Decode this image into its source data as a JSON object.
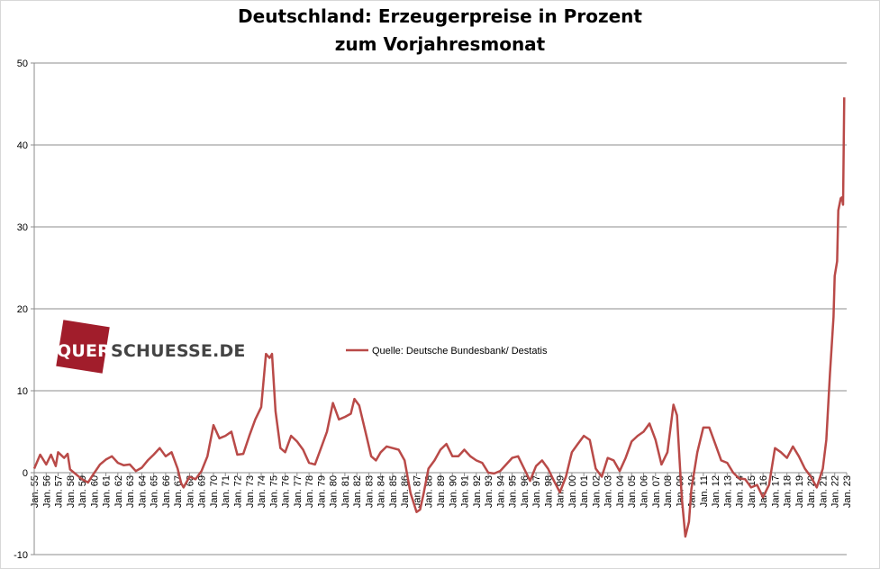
{
  "chart_data": {
    "type": "line",
    "title": "Deutschland: Erzeugerpreise in Prozent",
    "subtitle": "zum Vorjahresmonat",
    "xlabel": "",
    "ylabel": "",
    "ylim": [
      -10,
      50
    ],
    "yticks": [
      -10,
      0,
      10,
      20,
      30,
      40,
      50
    ],
    "grid": true,
    "legend_position": "center",
    "series": [
      {
        "name": "Quelle: Deutsche Bundesbank/ Destatis",
        "color": "#b94a48",
        "points": [
          [
            1955.0,
            0.5
          ],
          [
            1955.5,
            2.2
          ],
          [
            1956.0,
            1.0
          ],
          [
            1956.4,
            2.2
          ],
          [
            1956.8,
            0.8
          ],
          [
            1957.0,
            2.5
          ],
          [
            1957.5,
            1.8
          ],
          [
            1957.8,
            2.3
          ],
          [
            1958.0,
            0.4
          ],
          [
            1958.5,
            -0.2
          ],
          [
            1959.0,
            -0.8
          ],
          [
            1959.5,
            -1.2
          ],
          [
            1959.9,
            -0.3
          ],
          [
            1960.5,
            1.0
          ],
          [
            1961.0,
            1.6
          ],
          [
            1961.5,
            2.0
          ],
          [
            1962.0,
            1.2
          ],
          [
            1962.5,
            0.9
          ],
          [
            1963.0,
            1.0
          ],
          [
            1963.5,
            0.2
          ],
          [
            1964.0,
            0.6
          ],
          [
            1964.5,
            1.5
          ],
          [
            1965.0,
            2.2
          ],
          [
            1965.5,
            3.0
          ],
          [
            1966.0,
            2.0
          ],
          [
            1966.5,
            2.5
          ],
          [
            1967.0,
            0.5
          ],
          [
            1967.3,
            -1.3
          ],
          [
            1967.5,
            -1.8
          ],
          [
            1968.0,
            -0.5
          ],
          [
            1968.5,
            -0.8
          ],
          [
            1969.0,
            0.2
          ],
          [
            1969.5,
            2.0
          ],
          [
            1970.0,
            5.8
          ],
          [
            1970.5,
            4.2
          ],
          [
            1971.0,
            4.5
          ],
          [
            1971.5,
            5.0
          ],
          [
            1972.0,
            2.2
          ],
          [
            1972.5,
            2.3
          ],
          [
            1973.0,
            4.5
          ],
          [
            1973.5,
            6.5
          ],
          [
            1974.0,
            8.0
          ],
          [
            1974.4,
            14.5
          ],
          [
            1974.7,
            14.0
          ],
          [
            1974.9,
            14.5
          ],
          [
            1975.2,
            7.5
          ],
          [
            1975.6,
            3.0
          ],
          [
            1976.0,
            2.5
          ],
          [
            1976.5,
            4.5
          ],
          [
            1977.0,
            3.8
          ],
          [
            1977.5,
            2.8
          ],
          [
            1978.0,
            1.2
          ],
          [
            1978.5,
            1.0
          ],
          [
            1979.0,
            3.0
          ],
          [
            1979.5,
            5.0
          ],
          [
            1980.0,
            8.5
          ],
          [
            1980.5,
            6.5
          ],
          [
            1981.0,
            6.8
          ],
          [
            1981.5,
            7.2
          ],
          [
            1981.8,
            9.0
          ],
          [
            1982.2,
            8.2
          ],
          [
            1982.8,
            4.5
          ],
          [
            1983.2,
            2.0
          ],
          [
            1983.6,
            1.5
          ],
          [
            1984.0,
            2.5
          ],
          [
            1984.5,
            3.2
          ],
          [
            1985.0,
            3.0
          ],
          [
            1985.5,
            2.8
          ],
          [
            1986.0,
            1.5
          ],
          [
            1986.5,
            -2.5
          ],
          [
            1987.0,
            -4.8
          ],
          [
            1987.3,
            -4.5
          ],
          [
            1987.6,
            -2.5
          ],
          [
            1988.0,
            0.5
          ],
          [
            1988.5,
            1.5
          ],
          [
            1989.0,
            2.8
          ],
          [
            1989.5,
            3.5
          ],
          [
            1990.0,
            2.0
          ],
          [
            1990.5,
            2.0
          ],
          [
            1991.0,
            2.8
          ],
          [
            1991.5,
            2.0
          ],
          [
            1992.0,
            1.5
          ],
          [
            1992.5,
            1.2
          ],
          [
            1993.0,
            0.0
          ],
          [
            1993.5,
            -0.1
          ],
          [
            1994.0,
            0.2
          ],
          [
            1994.5,
            1.0
          ],
          [
            1995.0,
            1.8
          ],
          [
            1995.5,
            2.0
          ],
          [
            1996.0,
            0.5
          ],
          [
            1996.5,
            -1.0
          ],
          [
            1997.0,
            0.8
          ],
          [
            1997.5,
            1.5
          ],
          [
            1998.0,
            0.5
          ],
          [
            1998.5,
            -1.0
          ],
          [
            1999.0,
            -2.4
          ],
          [
            1999.5,
            -0.5
          ],
          [
            2000.0,
            2.5
          ],
          [
            2000.5,
            3.5
          ],
          [
            2001.0,
            4.5
          ],
          [
            2001.5,
            4.0
          ],
          [
            2002.0,
            0.5
          ],
          [
            2002.5,
            -0.5
          ],
          [
            2003.0,
            1.8
          ],
          [
            2003.5,
            1.5
          ],
          [
            2004.0,
            0.2
          ],
          [
            2004.5,
            1.8
          ],
          [
            2005.0,
            3.8
          ],
          [
            2005.5,
            4.5
          ],
          [
            2006.0,
            5.0
          ],
          [
            2006.5,
            6.0
          ],
          [
            2007.0,
            4.0
          ],
          [
            2007.5,
            1.0
          ],
          [
            2008.0,
            2.5
          ],
          [
            2008.5,
            8.3
          ],
          [
            2008.8,
            7.0
          ],
          [
            2009.2,
            -3.0
          ],
          [
            2009.5,
            -7.8
          ],
          [
            2009.8,
            -6.0
          ],
          [
            2010.0,
            -2.0
          ],
          [
            2010.5,
            2.5
          ],
          [
            2011.0,
            5.5
          ],
          [
            2011.5,
            5.5
          ],
          [
            2012.0,
            3.5
          ],
          [
            2012.5,
            1.5
          ],
          [
            2013.0,
            1.2
          ],
          [
            2013.5,
            0.0
          ],
          [
            2014.0,
            -0.7
          ],
          [
            2014.5,
            -0.8
          ],
          [
            2015.0,
            -1.8
          ],
          [
            2015.5,
            -1.5
          ],
          [
            2016.0,
            -3.0
          ],
          [
            2016.5,
            -1.5
          ],
          [
            2017.0,
            3.0
          ],
          [
            2017.5,
            2.5
          ],
          [
            2018.0,
            1.8
          ],
          [
            2018.5,
            3.2
          ],
          [
            2019.0,
            2.0
          ],
          [
            2019.5,
            0.5
          ],
          [
            2020.0,
            -0.5
          ],
          [
            2020.5,
            -1.8
          ],
          [
            2021.0,
            0.5
          ],
          [
            2021.3,
            4.0
          ],
          [
            2021.6,
            12.0
          ],
          [
            2021.9,
            19.0
          ],
          [
            2022.0,
            24.0
          ],
          [
            2022.2,
            25.8
          ],
          [
            2022.3,
            32.0
          ],
          [
            2022.5,
            33.5
          ],
          [
            2022.6,
            33.6
          ],
          [
            2022.7,
            32.7
          ],
          [
            2022.8,
            45.8
          ]
        ]
      }
    ],
    "x_tick_labels": [
      "Jan. 55",
      "Jan. 56",
      "Jan. 57",
      "Jan. 58",
      "Jan. 59",
      "Jan. 60",
      "Jan. 61",
      "Jan. 62",
      "Jan. 63",
      "Jan. 64",
      "Jan. 65",
      "Jan. 66",
      "Jan. 67",
      "Jan. 68",
      "Jan. 69",
      "Jan. 70",
      "Jan. 71",
      "Jan. 72",
      "Jan. 73",
      "Jan. 74",
      "Jan. 75",
      "Jan. 76",
      "Jan. 77",
      "Jan. 78",
      "Jan. 79",
      "Jan. 80",
      "Jan. 81",
      "Jan. 82",
      "Jan. 83",
      "Jan. 84",
      "Jan. 85",
      "Jan. 86",
      "Jan. 87",
      "Jan. 88",
      "Jan. 89",
      "Jan. 90",
      "Jan. 91",
      "Jan. 92",
      "Jan. 93",
      "Jan. 94",
      "Jan. 95",
      "Jan. 96",
      "Jan. 97",
      "Jan. 98",
      "Jan. 99",
      "Jan. 00",
      "Jan. 01",
      "Jan. 02",
      "Jan. 03",
      "Jan. 04",
      "Jan. 05",
      "Jan. 06",
      "Jan. 07",
      "Jan. 08",
      "Jan. 09",
      "Jan. 10",
      "Jan. 11",
      "Jan. 12",
      "Jan. 13",
      "Jan. 14",
      "Jan. 15",
      "Jan. 16",
      "Jan. 17",
      "Jan. 18",
      "Jan. 19",
      "Jan. 20",
      "Jan. 21",
      "Jan. 22",
      "Jan. 23"
    ]
  },
  "watermark": {
    "prefix": "QUER",
    "suffix": "SCHUESSE.DE",
    "text": "QUERSCHUESSE.DE"
  }
}
